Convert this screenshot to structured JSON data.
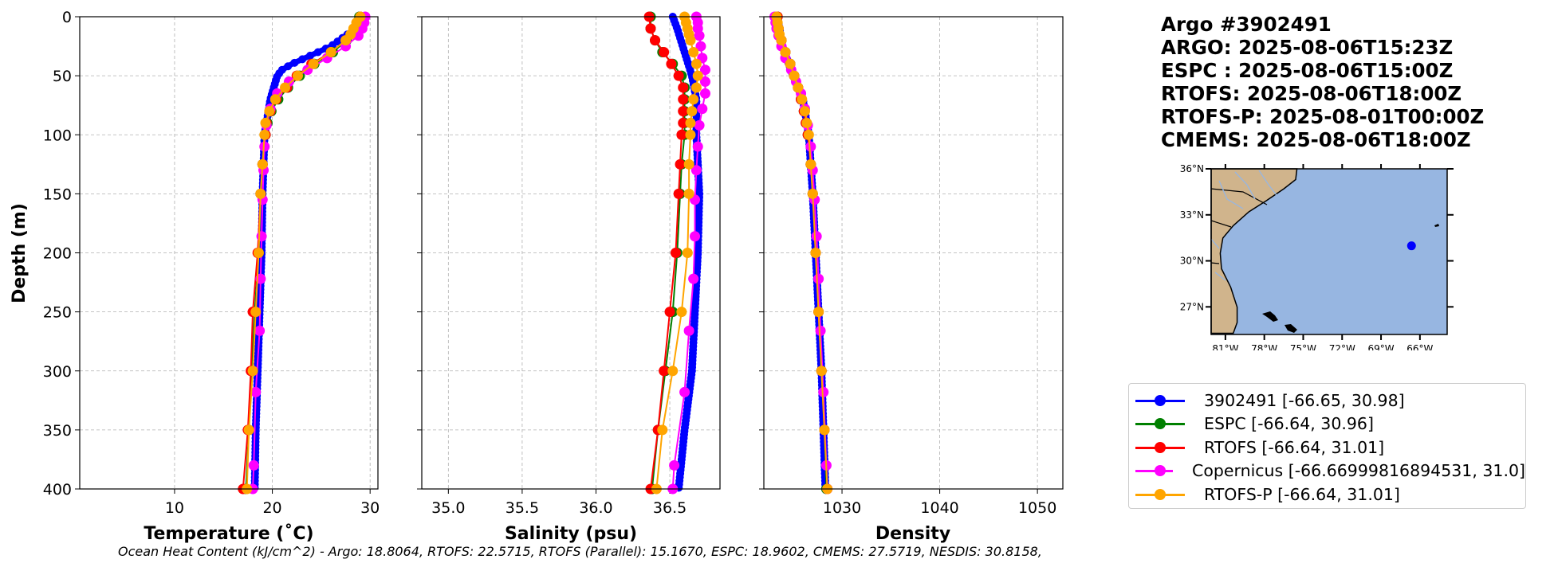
{
  "title_lines": [
    "Argo #3902491",
    "ARGO: 2025-08-06T15:23Z",
    "ESPC : 2025-08-06T15:00Z",
    "RTOFS: 2025-08-06T18:00Z",
    "RTOFS-P: 2025-08-01T00:00Z",
    "CMEMS: 2025-08-06T18:00Z"
  ],
  "ohc_text": "Ocean Heat Content (kJ/cm^2) - Argo: 18.8064,  RTOFS: 22.5715,  RTOFS (Parallel): 15.1670,  ESPC: 18.9602,  CMEMS: 27.5719,  NESDIS: 30.8158,",
  "legend": [
    {
      "label": "3902491 [-66.65, 30.98]",
      "color": "#0000ff"
    },
    {
      "label": "ESPC [-66.64, 30.96]",
      "color": "#008000"
    },
    {
      "label": "RTOFS [-66.64, 31.01]",
      "color": "#ff0000"
    },
    {
      "label": "Copernicus [-66.66999816894531, 31.0]",
      "color": "#ff00ff"
    },
    {
      "label": "RTOFS-P [-66.64, 31.01]",
      "color": "#ffa500"
    }
  ],
  "map": {
    "lat_labels": [
      "36°N",
      "33°N",
      "30°N",
      "27°N"
    ],
    "lon_labels": [
      "81°W",
      "78°W",
      "75°W",
      "72°W",
      "69°W",
      "66°W"
    ],
    "float_position": {
      "lon": -66.65,
      "lat": 30.98
    },
    "lon_range": [
      -82.1,
      -63.9
    ],
    "lat_range": [
      25.2,
      36.0
    ],
    "ocean_color": "#97b6e1",
    "land_color": "#d0b48c"
  },
  "chart_data": {
    "type": "line",
    "ylabel": "Depth (m)",
    "ylim": [
      400,
      0
    ],
    "yticks": [
      0,
      50,
      100,
      150,
      200,
      250,
      300,
      350,
      400
    ],
    "grid": true,
    "legend_placement": "right",
    "panels": [
      {
        "key": "temp",
        "xlabel": "Temperature (˚C)",
        "xlim": [
          0.3,
          30.8
        ],
        "xticks": [
          10,
          20,
          30
        ],
        "xtick_labels": [
          "10",
          "20",
          "30"
        ],
        "series": [
          {
            "name": "3902491",
            "color": "#0000ff",
            "dense": true,
            "depth": [
              0,
              10,
              25,
              40,
              45,
              50,
              70,
              100,
              150,
              200,
              250,
              300,
              350,
              400
            ],
            "values": [
              29.3,
              28.5,
              26.0,
              22.0,
              21.0,
              20.5,
              19.8,
              19.2,
              19.0,
              18.9,
              18.7,
              18.5,
              18.3,
              18.2
            ]
          },
          {
            "name": "ESPC",
            "color": "#008000",
            "depth": [
              0,
              10,
              20,
              30,
              40,
              50,
              60,
              70,
              80,
              90,
              100,
              125,
              150,
              200,
              250,
              300,
              350,
              400
            ],
            "values": [
              28.9,
              28.6,
              27.6,
              26.2,
              24.3,
              22.8,
              21.6,
              20.6,
              19.9,
              19.5,
              19.3,
              19.0,
              18.8,
              18.6,
              18.2,
              17.9,
              17.6,
              17.3
            ]
          },
          {
            "name": "RTOFS",
            "color": "#ff0000",
            "depth": [
              0,
              10,
              20,
              30,
              40,
              50,
              60,
              70,
              80,
              90,
              100,
              125,
              150,
              200,
              250,
              300,
              350,
              400
            ],
            "values": [
              29.0,
              28.7,
              27.5,
              26.0,
              24.0,
              22.5,
              21.5,
              20.4,
              19.8,
              19.4,
              19.3,
              19.0,
              18.8,
              18.5,
              18.0,
              17.8,
              17.5,
              17.0
            ]
          },
          {
            "name": "Copernicus",
            "color": "#ff00ff",
            "depth": [
              0,
              5,
              10,
              16,
              25,
              35,
              45,
              55,
              65,
              78,
              92,
              110,
              130,
              155,
              186,
              222,
              266,
              318,
              380,
              400
            ],
            "values": [
              29.5,
              29.4,
              29.2,
              28.8,
              27.5,
              25.6,
              23.6,
              21.7,
              20.5,
              19.8,
              19.4,
              19.2,
              19.1,
              19.0,
              18.9,
              18.8,
              18.7,
              18.3,
              18.1,
              18.0
            ]
          },
          {
            "name": "RTOFS-P",
            "color": "#ffa500",
            "depth": [
              0,
              5,
              10,
              15,
              20,
              30,
              40,
              50,
              60,
              70,
              80,
              90,
              100,
              125,
              150,
              200,
              250,
              300,
              350,
              400
            ],
            "values": [
              29.0,
              28.6,
              28.3,
              28.0,
              27.5,
              26.0,
              24.2,
              22.6,
              21.3,
              20.3,
              19.7,
              19.3,
              19.2,
              19.0,
              18.8,
              18.6,
              18.3,
              18.0,
              17.6,
              17.4
            ]
          }
        ]
      },
      {
        "key": "sal",
        "xlabel": "Salinity (psu)",
        "xlim": [
          34.82,
          36.84
        ],
        "xticks": [
          35.0,
          35.5,
          36.0,
          36.5
        ],
        "xtick_labels": [
          "35.0",
          "35.5",
          "36.0",
          "36.5"
        ],
        "series": [
          {
            "name": "3902491",
            "color": "#0000ff",
            "dense": true,
            "depth": [
              0,
              10,
              30,
              50,
              70,
              100,
              150,
              200,
              250,
              300,
              350,
              400
            ],
            "values": [
              36.52,
              36.55,
              36.6,
              36.65,
              36.68,
              36.68,
              36.7,
              36.69,
              36.67,
              36.65,
              36.6,
              36.56
            ]
          },
          {
            "name": "ESPC",
            "color": "#008000",
            "depth": [
              0,
              10,
              20,
              30,
              40,
              50,
              60,
              70,
              80,
              90,
              100,
              125,
              150,
              200,
              250,
              300,
              350,
              400
            ],
            "values": [
              36.37,
              36.37,
              36.4,
              36.45,
              36.52,
              36.58,
              36.6,
              36.6,
              36.6,
              36.6,
              36.6,
              36.58,
              36.57,
              36.55,
              36.52,
              36.47,
              36.42,
              36.38
            ]
          },
          {
            "name": "RTOFS",
            "color": "#ff0000",
            "depth": [
              0,
              10,
              20,
              30,
              40,
              50,
              60,
              70,
              80,
              90,
              100,
              125,
              150,
              200,
              250,
              300,
              350,
              400
            ],
            "values": [
              36.36,
              36.37,
              36.4,
              36.46,
              36.51,
              36.56,
              36.59,
              36.59,
              36.59,
              36.59,
              36.58,
              36.57,
              36.56,
              36.54,
              36.5,
              36.46,
              36.42,
              36.37
            ]
          },
          {
            "name": "Copernicus",
            "color": "#ff00ff",
            "depth": [
              0,
              5,
              10,
              16,
              25,
              35,
              45,
              55,
              65,
              78,
              92,
              110,
              130,
              155,
              186,
              222,
              266,
              318,
              380,
              400
            ],
            "values": [
              36.68,
              36.69,
              36.69,
              36.7,
              36.71,
              36.72,
              36.74,
              36.74,
              36.74,
              36.72,
              36.7,
              36.69,
              36.68,
              36.67,
              36.67,
              36.66,
              36.63,
              36.6,
              36.53,
              36.52
            ]
          },
          {
            "name": "RTOFS-P",
            "color": "#ffa500",
            "depth": [
              0,
              5,
              10,
              15,
              20,
              30,
              40,
              50,
              60,
              70,
              80,
              90,
              100,
              125,
              150,
              200,
              250,
              300,
              350,
              400
            ],
            "values": [
              36.6,
              36.61,
              36.62,
              36.63,
              36.64,
              36.66,
              36.68,
              36.69,
              36.68,
              36.66,
              36.65,
              36.64,
              36.64,
              36.63,
              36.63,
              36.62,
              36.58,
              36.52,
              36.45,
              36.41
            ]
          }
        ]
      },
      {
        "key": "dens",
        "xlabel": "Density",
        "xlim": [
          1022.0,
          1052.6
        ],
        "xticks": [
          1030,
          1040,
          1050
        ],
        "xtick_labels": [
          "1030",
          "1040",
          "1050"
        ],
        "series": [
          {
            "name": "3902491",
            "color": "#0000ff",
            "dense": true,
            "depth": [
              0,
              25,
              50,
              70,
              100,
              150,
              200,
              250,
              300,
              350,
              400
            ],
            "values": [
              1023.4,
              1023.9,
              1025.0,
              1026.0,
              1026.6,
              1027.0,
              1027.3,
              1027.6,
              1027.9,
              1028.1,
              1028.3
            ]
          },
          {
            "name": "ESPC",
            "color": "#008000",
            "depth": [
              0,
              10,
              20,
              30,
              40,
              50,
              60,
              70,
              80,
              90,
              100,
              125,
              150,
              200,
              250,
              300,
              350,
              400
            ],
            "values": [
              1023.4,
              1023.5,
              1023.8,
              1024.2,
              1024.7,
              1025.1,
              1025.5,
              1025.8,
              1026.1,
              1026.3,
              1026.5,
              1026.8,
              1027.0,
              1027.3,
              1027.6,
              1027.9,
              1028.2,
              1028.4
            ]
          },
          {
            "name": "RTOFS",
            "color": "#ff0000",
            "depth": [
              0,
              10,
              20,
              30,
              40,
              50,
              60,
              70,
              80,
              90,
              100,
              125,
              150,
              200,
              250,
              300,
              350,
              400
            ],
            "values": [
              1023.4,
              1023.5,
              1023.8,
              1024.2,
              1024.7,
              1025.1,
              1025.5,
              1025.8,
              1026.1,
              1026.3,
              1026.5,
              1026.8,
              1027.0,
              1027.3,
              1027.6,
              1027.9,
              1028.2,
              1028.5
            ]
          },
          {
            "name": "Copernicus",
            "color": "#ff00ff",
            "depth": [
              0,
              5,
              10,
              16,
              25,
              35,
              45,
              55,
              65,
              78,
              92,
              110,
              130,
              155,
              186,
              222,
              266,
              318,
              380,
              400
            ],
            "values": [
              1023.1,
              1023.2,
              1023.3,
              1023.5,
              1023.8,
              1024.2,
              1024.8,
              1025.3,
              1025.8,
              1026.2,
              1026.5,
              1026.8,
              1027.0,
              1027.2,
              1027.4,
              1027.6,
              1027.8,
              1028.1,
              1028.4,
              1028.5
            ]
          },
          {
            "name": "RTOFS-P",
            "color": "#ffa500",
            "depth": [
              0,
              5,
              10,
              15,
              20,
              30,
              40,
              50,
              60,
              70,
              80,
              90,
              100,
              125,
              150,
              200,
              250,
              300,
              350,
              400
            ],
            "values": [
              1023.3,
              1023.4,
              1023.5,
              1023.6,
              1023.8,
              1024.2,
              1024.7,
              1025.1,
              1025.5,
              1025.9,
              1026.2,
              1026.4,
              1026.6,
              1026.8,
              1027.0,
              1027.3,
              1027.6,
              1027.9,
              1028.2,
              1028.5
            ]
          }
        ]
      }
    ]
  }
}
